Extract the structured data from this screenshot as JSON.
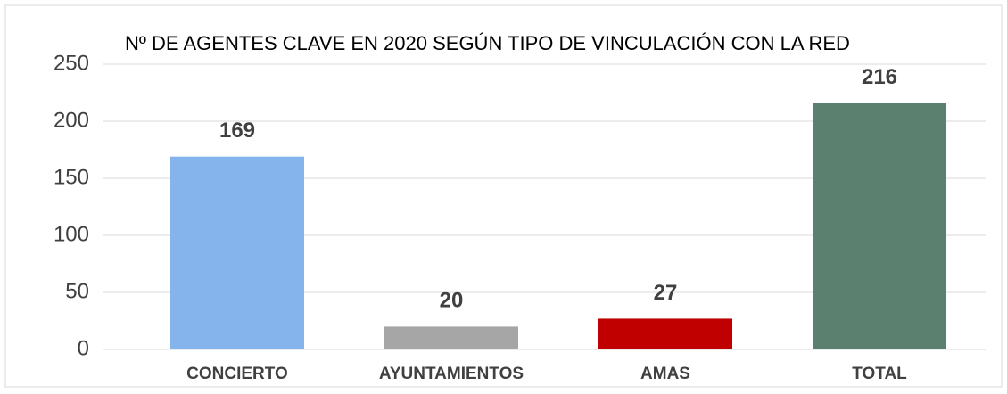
{
  "chart_data": {
    "type": "bar",
    "title": "Nº DE AGENTES CLAVE EN 2020 SEGÚN TIPO DE VINCULACIÓN CON LA RED",
    "categories": [
      "CONCIERTO",
      "AYUNTAMIENTOS",
      "AMAS",
      "TOTAL"
    ],
    "values": [
      169,
      20,
      27,
      216
    ],
    "colors": [
      "#85b3eb",
      "#a6a6a6",
      "#c00000",
      "#5b8070"
    ],
    "ylim": [
      0,
      250
    ],
    "yticks": [
      0,
      50,
      100,
      150,
      200,
      250
    ],
    "grid": true
  }
}
